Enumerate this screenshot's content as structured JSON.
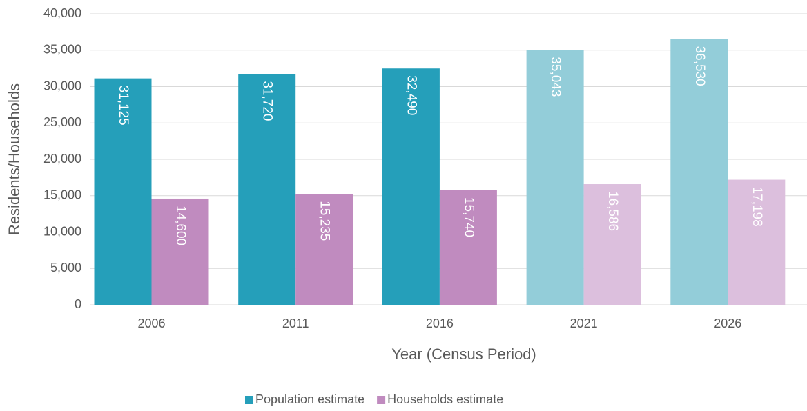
{
  "chart_data": {
    "type": "bar",
    "x_label": "Year (Census Period)",
    "y_label": "Residents/Households",
    "categories": [
      "2006",
      "2011",
      "2016",
      "2021",
      "2026"
    ],
    "series": [
      {
        "name": "Population estimate",
        "color": "#259fba",
        "colors": [
          "#259fba",
          "#259fba",
          "#259fba",
          "#93cdd9",
          "#93cdd9"
        ],
        "values": [
          31125,
          31720,
          32490,
          35043,
          36530
        ],
        "value_labels": [
          "31,125",
          "31,720",
          "32,490",
          "35,043",
          "36,530"
        ]
      },
      {
        "name": "Households estimate",
        "color": "#c08bbf",
        "colors": [
          "#c08bbf",
          "#c08bbf",
          "#c08bbf",
          "#dcbfdd",
          "#dcbfdd"
        ],
        "values": [
          14600,
          15235,
          15740,
          16586,
          17198
        ],
        "value_labels": [
          "14,600",
          "15,235",
          "15,740",
          "16,586",
          "17,198"
        ]
      }
    ],
    "ylim": [
      0,
      40000
    ],
    "yticks": [
      0,
      {
        "value": 5000,
        "label": "5,000"
      },
      {
        "value": 10000,
        "label": "10,000"
      },
      {
        "value": 15000,
        "label": "15,000"
      },
      {
        "value": 20000,
        "label": "20,000"
      },
      {
        "value": 25000,
        "label": "25,000"
      },
      {
        "value": 30000,
        "label": "30,000"
      },
      {
        "value": 35000,
        "label": "35,000"
      },
      {
        "value": 40000,
        "label": "40,000"
      }
    ],
    "grid": true,
    "legend": "bottom"
  }
}
